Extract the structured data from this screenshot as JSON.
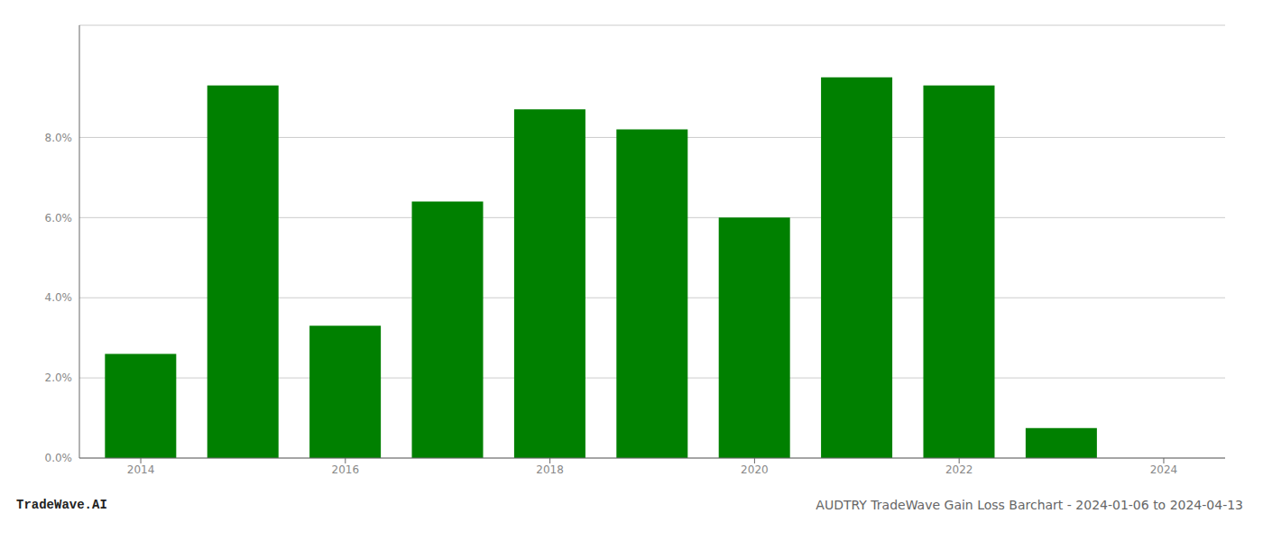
{
  "chart_data": {
    "type": "bar",
    "x": [
      2014,
      2015,
      2016,
      2017,
      2018,
      2019,
      2020,
      2021,
      2022,
      2023
    ],
    "values": [
      0.026,
      0.093,
      0.033,
      0.064,
      0.087,
      0.082,
      0.06,
      0.095,
      0.093,
      0.0075
    ],
    "color": "#008000",
    "xlim": [
      2013.4,
      2024.6
    ],
    "xticks": [
      2014,
      2016,
      2018,
      2020,
      2022,
      2024
    ],
    "ylim": [
      0,
      0.108
    ],
    "yticks": [
      {
        "value": 0.0,
        "label": "0.0%"
      },
      {
        "value": 0.02,
        "label": "2.0%"
      },
      {
        "value": 0.04,
        "label": "4.0%"
      },
      {
        "value": 0.06,
        "label": "6.0%"
      },
      {
        "value": 0.08,
        "label": "8.0%"
      }
    ],
    "grid": true,
    "annotations": [
      "TradeWave.AI",
      "AUDTRY TradeWave Gain Loss Barchart - 2024-01-06 to 2024-04-13"
    ]
  }
}
